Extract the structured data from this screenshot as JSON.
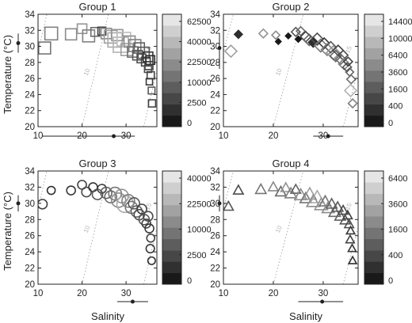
{
  "figure": {
    "ylabel": "Temperature (°C)",
    "xlabel": "Salinity"
  },
  "chart_data": [
    {
      "type": "scatter",
      "title": "Group 1",
      "marker": "square",
      "xlabel": "",
      "ylabel": "Temperature (°C)",
      "xlim": [
        10,
        37
      ],
      "ylim": [
        20,
        34
      ],
      "xticks": [
        "10",
        "20",
        "30"
      ],
      "yticks": [
        "20",
        "22",
        "24",
        "26",
        "28",
        "30",
        "32",
        "34"
      ],
      "contours": [
        "5",
        "10",
        "15"
      ],
      "colorbar": {
        "ticks": [
          "0",
          "2500",
          "10000",
          "22500",
          "40000",
          "62500"
        ]
      },
      "x_marker": {
        "mean": 27.2,
        "range": [
          11,
          32
        ]
      },
      "y_marker": {
        "mean": 30.4,
        "range": [
          29.2,
          31.6
        ]
      },
      "points": [
        {
          "x": 11.5,
          "y": 29.8,
          "v": 0.45,
          "s": 1.0
        },
        {
          "x": 13.0,
          "y": 31.6,
          "v": 0.5,
          "s": 1.1
        },
        {
          "x": 17.5,
          "y": 31.5,
          "v": 0.55,
          "s": 0.9
        },
        {
          "x": 20.0,
          "y": 32.2,
          "v": 0.6,
          "s": 0.7
        },
        {
          "x": 21.5,
          "y": 31.3,
          "v": 0.5,
          "s": 1.0
        },
        {
          "x": 23.0,
          "y": 31.8,
          "v": 0.4,
          "s": 0.6
        },
        {
          "x": 24.5,
          "y": 31.9,
          "v": 0.2,
          "s": 0.5
        },
        {
          "x": 25.5,
          "y": 31.6,
          "v": 0.55,
          "s": 0.8
        },
        {
          "x": 26.5,
          "y": 31.2,
          "v": 0.65,
          "s": 1.1
        },
        {
          "x": 27.5,
          "y": 30.8,
          "v": 0.7,
          "s": 1.3
        },
        {
          "x": 28.0,
          "y": 31.4,
          "v": 0.6,
          "s": 0.9
        },
        {
          "x": 28.8,
          "y": 30.2,
          "v": 0.75,
          "s": 1.4
        },
        {
          "x": 29.5,
          "y": 30.9,
          "v": 0.8,
          "s": 1.2
        },
        {
          "x": 30.2,
          "y": 29.6,
          "v": 0.65,
          "s": 1.0
        },
        {
          "x": 30.8,
          "y": 30.6,
          "v": 0.55,
          "s": 0.9
        },
        {
          "x": 31.5,
          "y": 29.3,
          "v": 0.4,
          "s": 0.8
        },
        {
          "x": 32.0,
          "y": 30.1,
          "v": 0.5,
          "s": 1.0
        },
        {
          "x": 32.6,
          "y": 28.9,
          "v": 0.3,
          "s": 0.7
        },
        {
          "x": 33.0,
          "y": 29.8,
          "v": 0.35,
          "s": 0.8
        },
        {
          "x": 33.5,
          "y": 28.5,
          "v": 0.25,
          "s": 0.6
        },
        {
          "x": 34.0,
          "y": 29.2,
          "v": 0.3,
          "s": 0.9
        },
        {
          "x": 34.5,
          "y": 28.1,
          "v": 0.2,
          "s": 0.6
        },
        {
          "x": 35.0,
          "y": 28.7,
          "v": 0.15,
          "s": 0.7
        },
        {
          "x": 35.2,
          "y": 27.6,
          "v": 0.2,
          "s": 0.5
        },
        {
          "x": 35.5,
          "y": 28.3,
          "v": 0.1,
          "s": 0.6
        },
        {
          "x": 35.0,
          "y": 27.2,
          "v": 0.25,
          "s": 0.4
        },
        {
          "x": 35.6,
          "y": 26.4,
          "v": 0.2,
          "s": 0.4
        },
        {
          "x": 35.3,
          "y": 25.6,
          "v": 0.15,
          "s": 0.3
        },
        {
          "x": 35.8,
          "y": 24.5,
          "v": 0.3,
          "s": 0.35
        },
        {
          "x": 35.9,
          "y": 22.9,
          "v": 0.2,
          "s": 0.4
        }
      ]
    },
    {
      "type": "scatter",
      "title": "Group 2",
      "marker": "diamond",
      "xlabel": "",
      "ylabel": "",
      "xlim": [
        10,
        37
      ],
      "ylim": [
        20,
        34
      ],
      "xticks": [
        "10",
        "20",
        "30"
      ],
      "yticks": [
        "20",
        "22",
        "24",
        "26",
        "28",
        "30",
        "32",
        "34"
      ],
      "contours": [
        "5",
        "10",
        "15"
      ],
      "colorbar": {
        "ticks": [
          "0",
          "400",
          "1600",
          "3600",
          "6400",
          "10000",
          "14400"
        ]
      },
      "x_marker": {
        "mean": 31.0,
        "range": [
          28,
          34
        ]
      },
      "y_marker": {
        "mean": 29.8,
        "range": [
          27.2,
          31.6
        ]
      },
      "points": [
        {
          "x": 11.5,
          "y": 29.4,
          "v": 0.65,
          "s": 1.0
        },
        {
          "x": 13.0,
          "y": 31.5,
          "v": 0.1,
          "s": 0.5
        },
        {
          "x": 18.0,
          "y": 31.6,
          "v": 0.6,
          "s": 0.6
        },
        {
          "x": 20.5,
          "y": 31.4,
          "v": 0.55,
          "s": 0.5
        },
        {
          "x": 21.0,
          "y": 30.6,
          "v": 0.0,
          "s": 0.2
        },
        {
          "x": 23.0,
          "y": 31.3,
          "v": 0.0,
          "s": 0.2
        },
        {
          "x": 24.5,
          "y": 31.8,
          "v": 0.3,
          "s": 0.6
        },
        {
          "x": 25.5,
          "y": 31.9,
          "v": 0.4,
          "s": 0.6
        },
        {
          "x": 25.0,
          "y": 30.9,
          "v": 0.0,
          "s": 0.25
        },
        {
          "x": 26.5,
          "y": 31.2,
          "v": 0.2,
          "s": 0.8
        },
        {
          "x": 27.2,
          "y": 30.8,
          "v": 0.35,
          "s": 0.9
        },
        {
          "x": 28.0,
          "y": 30.5,
          "v": 0.1,
          "s": 0.7
        },
        {
          "x": 28.8,
          "y": 30.9,
          "v": 0.25,
          "s": 1.0
        },
        {
          "x": 29.5,
          "y": 30.1,
          "v": 0.45,
          "s": 1.1
        },
        {
          "x": 30.2,
          "y": 30.4,
          "v": 0.15,
          "s": 0.8
        },
        {
          "x": 30.8,
          "y": 29.6,
          "v": 0.5,
          "s": 1.0
        },
        {
          "x": 31.5,
          "y": 29.9,
          "v": 0.3,
          "s": 0.9
        },
        {
          "x": 32.0,
          "y": 29.2,
          "v": 0.6,
          "s": 1.2
        },
        {
          "x": 32.5,
          "y": 28.8,
          "v": 0.35,
          "s": 0.9
        },
        {
          "x": 33.0,
          "y": 29.5,
          "v": 0.2,
          "s": 0.8
        },
        {
          "x": 33.5,
          "y": 28.4,
          "v": 0.4,
          "s": 0.8
        },
        {
          "x": 34.0,
          "y": 28.9,
          "v": 0.25,
          "s": 0.7
        },
        {
          "x": 34.2,
          "y": 27.8,
          "v": 0.5,
          "s": 0.9
        },
        {
          "x": 34.8,
          "y": 27.4,
          "v": 0.3,
          "s": 0.6
        },
        {
          "x": 35.0,
          "y": 28.1,
          "v": 0.2,
          "s": 0.6
        },
        {
          "x": 35.3,
          "y": 26.8,
          "v": 0.35,
          "s": 0.5
        },
        {
          "x": 35.6,
          "y": 25.9,
          "v": 0.4,
          "s": 0.6
        },
        {
          "x": 35.5,
          "y": 24.5,
          "v": 0.75,
          "s": 1.0
        },
        {
          "x": 35.9,
          "y": 22.9,
          "v": 0.5,
          "s": 0.6
        }
      ]
    },
    {
      "type": "scatter",
      "title": "Group 3",
      "marker": "circle",
      "xlabel": "Salinity",
      "ylabel": "Temperature (°C)",
      "xlim": [
        10,
        37
      ],
      "ylim": [
        20,
        34
      ],
      "xticks": [
        "10",
        "20",
        "30"
      ],
      "yticks": [
        "20",
        "22",
        "24",
        "26",
        "28",
        "30",
        "32",
        "34"
      ],
      "contours": [
        "5",
        "10",
        "15"
      ],
      "colorbar": {
        "ticks": [
          "0",
          "2500",
          "10000",
          "22500",
          "40000"
        ]
      },
      "x_marker": {
        "mean": 31.5,
        "range": [
          28,
          35
        ]
      },
      "y_marker": {
        "mean": 30.0,
        "range": [
          29.0,
          31.0
        ]
      },
      "points": [
        {
          "x": 11.0,
          "y": 29.9,
          "v": 0.2,
          "s": 0.7
        },
        {
          "x": 13.0,
          "y": 31.6,
          "v": 0.1,
          "s": 0.5
        },
        {
          "x": 17.5,
          "y": 31.6,
          "v": 0.15,
          "s": 0.6
        },
        {
          "x": 20.0,
          "y": 32.3,
          "v": 0.2,
          "s": 0.6
        },
        {
          "x": 21.0,
          "y": 31.4,
          "v": 0.25,
          "s": 0.7
        },
        {
          "x": 22.5,
          "y": 32.0,
          "v": 0.15,
          "s": 0.6
        },
        {
          "x": 23.5,
          "y": 31.1,
          "v": 0.3,
          "s": 0.8
        },
        {
          "x": 24.5,
          "y": 31.8,
          "v": 0.2,
          "s": 0.6
        },
        {
          "x": 25.5,
          "y": 31.3,
          "v": 0.35,
          "s": 0.9
        },
        {
          "x": 26.5,
          "y": 30.8,
          "v": 0.4,
          "s": 1.0
        },
        {
          "x": 27.5,
          "y": 31.2,
          "v": 0.45,
          "s": 1.1
        },
        {
          "x": 28.3,
          "y": 30.4,
          "v": 0.55,
          "s": 1.3
        },
        {
          "x": 29.0,
          "y": 30.9,
          "v": 0.6,
          "s": 1.2
        },
        {
          "x": 29.8,
          "y": 29.9,
          "v": 0.7,
          "s": 1.6
        },
        {
          "x": 30.5,
          "y": 30.3,
          "v": 0.5,
          "s": 1.1
        },
        {
          "x": 31.2,
          "y": 29.5,
          "v": 0.45,
          "s": 1.0
        },
        {
          "x": 31.8,
          "y": 30.0,
          "v": 0.3,
          "s": 0.9
        },
        {
          "x": 32.4,
          "y": 29.0,
          "v": 0.35,
          "s": 0.9
        },
        {
          "x": 33.0,
          "y": 28.6,
          "v": 0.25,
          "s": 0.8
        },
        {
          "x": 33.6,
          "y": 29.3,
          "v": 0.2,
          "s": 0.7
        },
        {
          "x": 34.1,
          "y": 28.0,
          "v": 0.3,
          "s": 0.8
        },
        {
          "x": 34.6,
          "y": 27.5,
          "v": 0.2,
          "s": 0.6
        },
        {
          "x": 35.0,
          "y": 28.4,
          "v": 0.25,
          "s": 0.7
        },
        {
          "x": 35.3,
          "y": 26.9,
          "v": 0.15,
          "s": 0.6
        },
        {
          "x": 35.6,
          "y": 25.7,
          "v": 0.2,
          "s": 0.5
        },
        {
          "x": 35.5,
          "y": 24.4,
          "v": 0.15,
          "s": 0.55
        },
        {
          "x": 35.8,
          "y": 22.9,
          "v": 0.1,
          "s": 0.45
        }
      ]
    },
    {
      "type": "scatter",
      "title": "Group 4",
      "marker": "triangle",
      "xlabel": "Salinity",
      "ylabel": "",
      "xlim": [
        10,
        37
      ],
      "ylim": [
        20,
        34
      ],
      "xticks": [
        "10",
        "20",
        "30"
      ],
      "yticks": [
        "20",
        "22",
        "24",
        "26",
        "28",
        "30",
        "32",
        "34"
      ],
      "contours": [
        "5",
        "10",
        "15"
      ],
      "colorbar": {
        "ticks": [
          "0",
          "400",
          "1600",
          "3600",
          "6400"
        ]
      },
      "x_marker": {
        "mean": 29.8,
        "range": [
          25,
          34
        ]
      },
      "y_marker": {
        "mean": 30.0,
        "range": [
          29.0,
          31.0
        ]
      },
      "points": [
        {
          "x": 11.0,
          "y": 29.6,
          "v": 0.3,
          "s": 0.8
        },
        {
          "x": 13.0,
          "y": 31.6,
          "v": 0.25,
          "s": 0.8
        },
        {
          "x": 17.5,
          "y": 31.7,
          "v": 0.45,
          "s": 0.9
        },
        {
          "x": 20.0,
          "y": 32.0,
          "v": 0.55,
          "s": 0.8
        },
        {
          "x": 21.5,
          "y": 31.4,
          "v": 0.4,
          "s": 0.9
        },
        {
          "x": 22.5,
          "y": 31.9,
          "v": 0.6,
          "s": 0.8
        },
        {
          "x": 23.5,
          "y": 31.2,
          "v": 0.5,
          "s": 1.0
        },
        {
          "x": 24.5,
          "y": 31.7,
          "v": 0.35,
          "s": 0.8
        },
        {
          "x": 25.5,
          "y": 31.0,
          "v": 0.55,
          "s": 1.1
        },
        {
          "x": 26.5,
          "y": 30.6,
          "v": 0.45,
          "s": 1.0
        },
        {
          "x": 27.3,
          "y": 31.1,
          "v": 0.65,
          "s": 1.2
        },
        {
          "x": 28.0,
          "y": 30.2,
          "v": 0.55,
          "s": 1.2
        },
        {
          "x": 28.8,
          "y": 30.7,
          "v": 0.7,
          "s": 1.3
        },
        {
          "x": 29.6,
          "y": 29.8,
          "v": 0.6,
          "s": 1.2
        },
        {
          "x": 30.4,
          "y": 30.2,
          "v": 0.45,
          "s": 1.0
        },
        {
          "x": 31.0,
          "y": 29.4,
          "v": 0.55,
          "s": 1.1
        },
        {
          "x": 31.7,
          "y": 29.9,
          "v": 0.35,
          "s": 0.9
        },
        {
          "x": 32.3,
          "y": 28.9,
          "v": 0.4,
          "s": 1.0
        },
        {
          "x": 32.9,
          "y": 29.5,
          "v": 0.3,
          "s": 0.9
        },
        {
          "x": 33.4,
          "y": 28.4,
          "v": 0.35,
          "s": 0.9
        },
        {
          "x": 34.0,
          "y": 29.1,
          "v": 0.25,
          "s": 0.8
        },
        {
          "x": 34.4,
          "y": 27.9,
          "v": 0.3,
          "s": 0.8
        },
        {
          "x": 34.9,
          "y": 28.5,
          "v": 0.2,
          "s": 0.7
        },
        {
          "x": 35.2,
          "y": 27.4,
          "v": 0.25,
          "s": 0.7
        },
        {
          "x": 35.5,
          "y": 26.6,
          "v": 0.15,
          "s": 0.6
        },
        {
          "x": 35.4,
          "y": 25.5,
          "v": 0.2,
          "s": 0.6
        },
        {
          "x": 35.8,
          "y": 24.4,
          "v": 0.15,
          "s": 0.55
        },
        {
          "x": 35.9,
          "y": 22.9,
          "v": 0.1,
          "s": 0.55
        }
      ]
    }
  ]
}
